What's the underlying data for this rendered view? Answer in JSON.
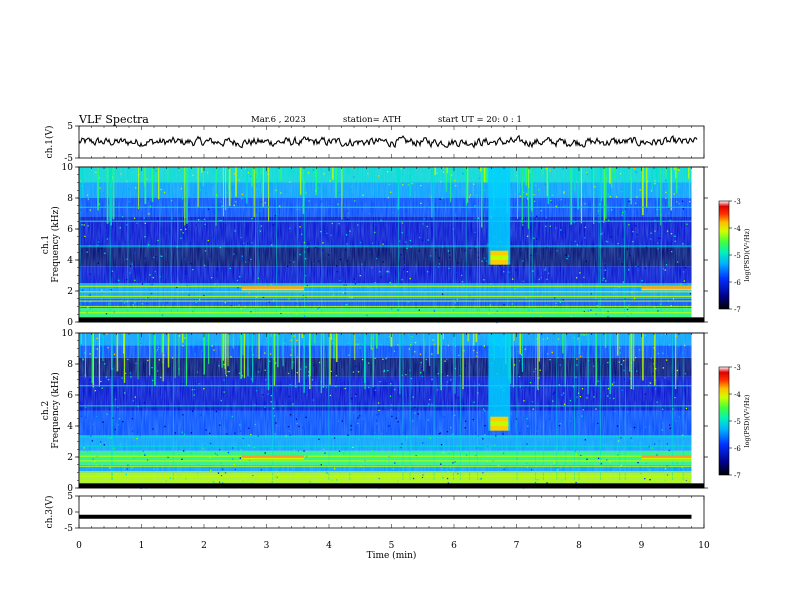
{
  "header": {
    "title": "VLF Spectra",
    "date": "Mar.6 , 2023",
    "station": "station= ATH",
    "start_ut": "start UT = 20: 0 : 1"
  },
  "chart_data": [
    {
      "type": "line",
      "panel": "ch.1 waveform",
      "ylabel": "ch.1(V)",
      "ylim": [
        -5,
        5
      ],
      "y_ticks": [
        "5",
        "-5"
      ],
      "xlim": [
        0,
        10
      ],
      "mean_value": 0,
      "amplitude_approx": 1
    },
    {
      "type": "heatmap",
      "panel": "ch.1 spectrogram",
      "ylabel": "ch.1\nFrequency (kHz)",
      "ylim": [
        0,
        10
      ],
      "y_ticks": [
        "0",
        "2",
        "4",
        "6",
        "8",
        "10"
      ],
      "xlim": [
        0,
        10
      ],
      "data_end_min": 9.8,
      "colorbar": {
        "label": "log(PSD)(V²/Hz)",
        "range": [
          -7,
          -3
        ],
        "ticks": [
          "-3",
          "-4",
          "-5",
          "-6",
          "-7"
        ]
      },
      "features": [
        {
          "name": "broadband burst",
          "time_min": [
            6.55,
            6.9
          ],
          "freq_khz": [
            3.7,
            10
          ]
        },
        {
          "name": "lines near 2 kHz",
          "time_min": [
            2.6,
            3.6
          ],
          "freq_khz": [
            2.1,
            2.3
          ]
        },
        {
          "name": "lines near 2 kHz",
          "time_min": [
            9.0,
            9.8
          ],
          "freq_khz": [
            2.1,
            2.3
          ]
        }
      ]
    },
    {
      "type": "heatmap",
      "panel": "ch.2 spectrogram",
      "ylabel": "ch.2\nFrequency (kHz)",
      "ylim": [
        0,
        10
      ],
      "y_ticks": [
        "0",
        "2",
        "4",
        "6",
        "8",
        "10"
      ],
      "xlim": [
        0,
        10
      ],
      "data_end_min": 9.8,
      "colorbar": {
        "label": "log(PSD)(V²/Hz)",
        "range": [
          -7,
          -3
        ],
        "ticks": [
          "-3",
          "-4",
          "-5",
          "-6",
          "-7"
        ]
      },
      "features": [
        {
          "name": "broadband burst",
          "time_min": [
            6.55,
            6.9
          ],
          "freq_khz": [
            3.7,
            10
          ]
        },
        {
          "name": "lines near 2 kHz",
          "time_min": [
            2.6,
            3.6
          ],
          "freq_khz": [
            1.8,
            2.1
          ]
        },
        {
          "name": "lines near 2 kHz",
          "time_min": [
            9.0,
            9.8
          ],
          "freq_khz": [
            1.8,
            2.1
          ]
        }
      ]
    },
    {
      "type": "line",
      "panel": "ch.3 waveform",
      "ylabel": "ch.3(V)",
      "ylim": [
        -5,
        5
      ],
      "y_ticks": [
        "5",
        "0",
        "-5"
      ],
      "xlim": [
        0,
        10
      ],
      "constant_value": -1.5
    }
  ],
  "x_axis": {
    "xlabel": "Time (min)",
    "ticks": [
      "0",
      "1",
      "2",
      "3",
      "4",
      "5",
      "6",
      "7",
      "8",
      "9",
      "10"
    ]
  },
  "colormap": [
    "#000000",
    "#000066",
    "#0000cc",
    "#0044ff",
    "#00a0ff",
    "#00e0d0",
    "#22ff66",
    "#bbff00",
    "#ffcc00",
    "#ff4400",
    "#dd0000",
    "#ffffff"
  ]
}
